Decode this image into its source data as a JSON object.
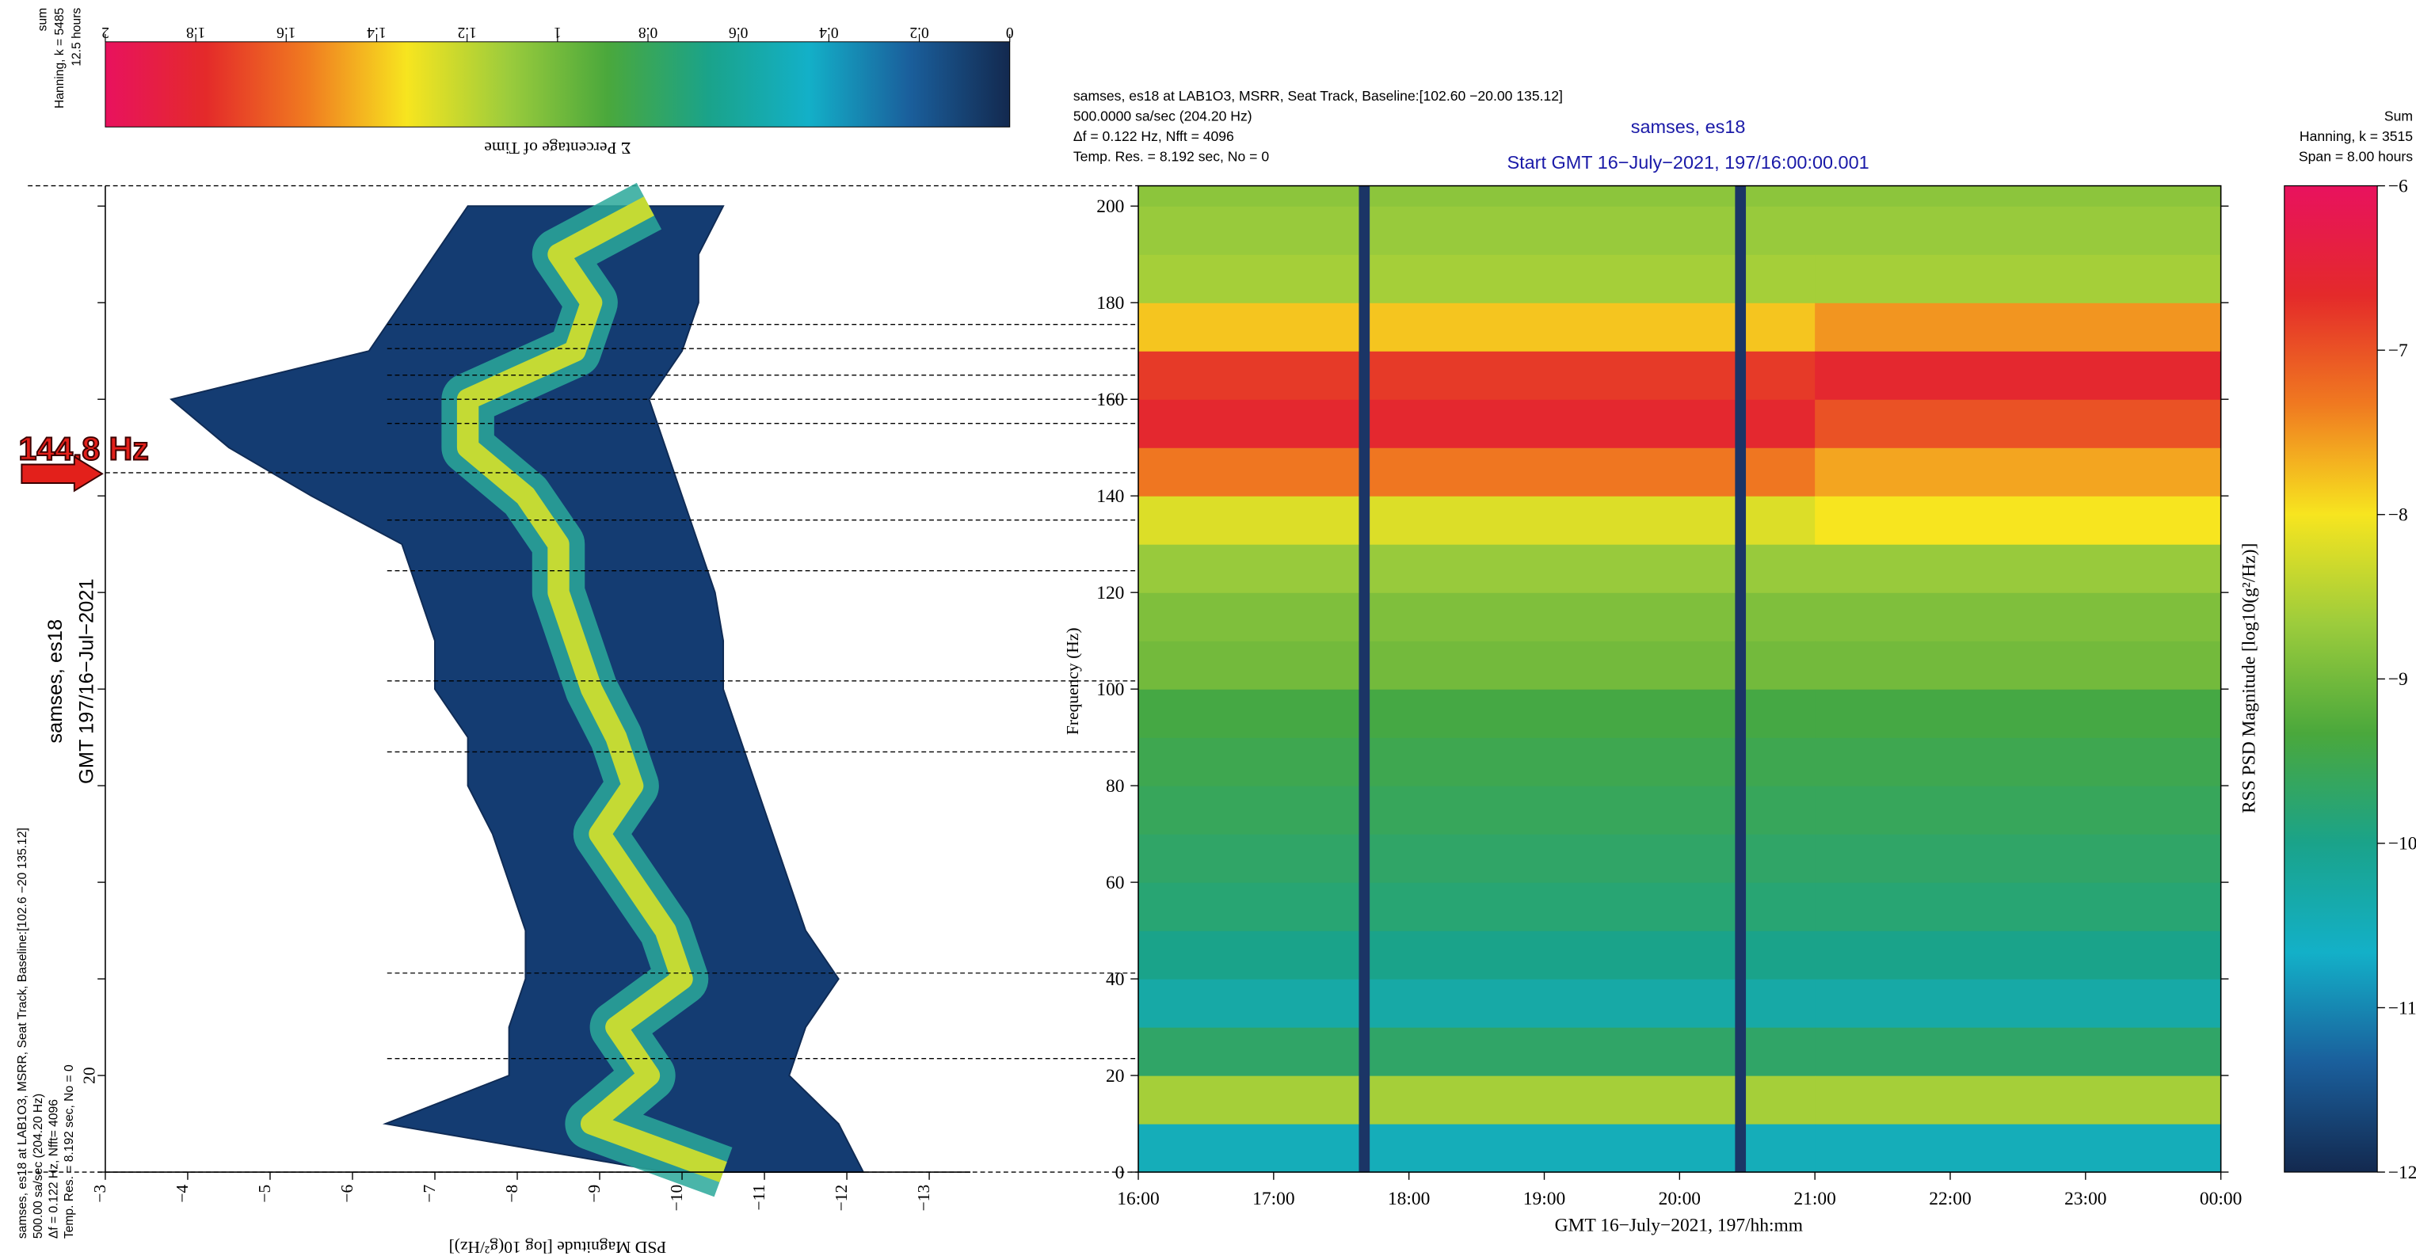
{
  "chart_data": [
    {
      "type": "psd_histogram",
      "side_title": "samses, es18",
      "side_subtitle": "GMT 197/16−Jul−2021",
      "info": [
        "samses, es18 at LAB1O3, MSRR, Seat Track, Baseline:[102.6 −20 135.12]",
        "500.00 sa/sec (204.20 Hz)",
        "Δf = 0.122 Hz, Nfft= 4096",
        "Temp. Res. = 8.192 sec, No = 0"
      ],
      "colorbar_info": [
        "sum",
        "Hanning, k = 5485",
        "12.5 hours"
      ],
      "xlabel": "PSD Magnitude [log 10(g²/Hz)]",
      "xlim": [
        -3,
        -13.5
      ],
      "xticks": [
        {
          "value": -3,
          "label": "−3"
        },
        {
          "value": -4,
          "label": "−4"
        },
        {
          "value": -5,
          "label": "−5"
        },
        {
          "value": -6,
          "label": "−6"
        },
        {
          "value": -7,
          "label": "−7"
        },
        {
          "value": -8,
          "label": "−8"
        },
        {
          "value": -9,
          "label": "−9"
        },
        {
          "value": -10,
          "label": "−10"
        },
        {
          "value": -11,
          "label": "−11"
        },
        {
          "value": -12,
          "label": "−12"
        },
        {
          "value": -13,
          "label": "−13"
        }
      ],
      "ylim": [
        0,
        204.2
      ],
      "yticks": [
        20
      ],
      "yticks_minor": [
        0,
        40,
        60,
        80,
        100,
        120,
        140,
        160,
        180,
        200
      ],
      "frequencies": [
        0,
        10,
        20,
        30,
        40,
        50,
        60,
        70,
        80,
        90,
        100,
        110,
        120,
        130,
        140,
        150,
        160,
        170,
        180,
        190,
        200
      ],
      "median": [
        -10.5,
        -8.9,
        -9.6,
        -9.2,
        -10.0,
        -9.8,
        -9.4,
        -9.0,
        -9.4,
        -9.2,
        -8.9,
        -8.7,
        -8.5,
        -8.5,
        -8.1,
        -7.4,
        -7.4,
        -8.7,
        -8.9,
        -8.5,
        -9.6
      ],
      "upper": [
        -9.8,
        -6.4,
        -7.9,
        -7.9,
        -8.1,
        -8.1,
        -7.9,
        -7.7,
        -7.4,
        -7.4,
        -7.0,
        -7.0,
        -6.8,
        -6.6,
        -5.5,
        -4.5,
        -3.8,
        -6.2,
        -6.6,
        -7.0,
        -7.4
      ],
      "lower": [
        -12.2,
        -11.9,
        -11.3,
        -11.5,
        -11.9,
        -11.5,
        -11.3,
        -11.1,
        -10.9,
        -10.7,
        -10.5,
        -10.5,
        -10.4,
        -10.2,
        -10.0,
        -9.8,
        -9.6,
        -10.0,
        -10.2,
        -10.2,
        -10.5
      ],
      "marked_frequencies": [
        175.5,
        170.5,
        165,
        160,
        155,
        144.8,
        135,
        124.5,
        101.7,
        87,
        41.2,
        23.5
      ],
      "annotation": {
        "text": "144.8 Hz",
        "frequency": 144.8
      },
      "colors": {
        "envelope": "#143c72",
        "median_outer": "#2aa89a",
        "median_inner": "#c4da34"
      },
      "colorbar": {
        "label": "Σ Percentage of Time",
        "xlim": [
          2,
          0
        ],
        "xticks": [
          2,
          1.8,
          1.6,
          1.4,
          1.2,
          1,
          0.8,
          0.6,
          0.4,
          0.2,
          0
        ],
        "colors": [
          "#e8125e",
          "#e42a2a",
          "#f07a20",
          "#f7e51f",
          "#9ccc3c",
          "#4aa83c",
          "#1aa38a",
          "#13b0c8",
          "#1a5f9c",
          "#13294f"
        ]
      }
    },
    {
      "type": "spectrogram",
      "header": [
        "samses, es18 at LAB1O3, MSRR, Seat Track, Baseline:[102.60 −20.00 135.12]",
        "500.0000 sa/sec (204.20 Hz)",
        "Δf = 0.122 Hz,  Nfft = 4096",
        "Temp. Res. = 8.192 sec, No = 0"
      ],
      "title": "samses, es18",
      "subtitle": "Start GMT 16−July−2021, 197/16:00:00.001",
      "info": [
        "Sum",
        "Hanning, k = 3515",
        "Span = 8.00 hours"
      ],
      "xlabel": "GMT 16−July−2021, 197/hh:mm",
      "ylabel": "Frequency (Hz)",
      "xlim": [
        16,
        24
      ],
      "xticks": [
        {
          "value": 16,
          "label": "16:00"
        },
        {
          "value": 17,
          "label": "17:00"
        },
        {
          "value": 18,
          "label": "18:00"
        },
        {
          "value": 19,
          "label": "19:00"
        },
        {
          "value": 20,
          "label": "20:00"
        },
        {
          "value": 21,
          "label": "21:00"
        },
        {
          "value": 22,
          "label": "22:00"
        },
        {
          "value": 23,
          "label": "23:00"
        },
        {
          "value": 24,
          "label": "00:00"
        }
      ],
      "ylim": [
        0,
        204.2
      ],
      "yticks": [
        0,
        20,
        40,
        60,
        80,
        100,
        120,
        140,
        160,
        180,
        200
      ],
      "time_edges": [
        16,
        21,
        24
      ],
      "freq_edges": [
        0,
        10,
        20,
        30,
        40,
        50,
        60,
        70,
        80,
        90,
        100,
        110,
        120,
        130,
        140,
        150,
        160,
        170,
        180,
        190,
        200,
        204.2
      ],
      "levels": [
        [
          -10.5,
          -8.6,
          -9.7,
          -10.3,
          -10.0,
          -9.8,
          -9.7,
          -9.6,
          -9.5,
          -9.4,
          -9.0,
          -8.9,
          -8.7,
          -8.2,
          -7.3,
          -6.6,
          -6.8,
          -7.8,
          -8.6,
          -8.7,
          -8.8
        ],
        [
          -10.5,
          -8.6,
          -9.7,
          -10.3,
          -10.0,
          -9.8,
          -9.7,
          -9.6,
          -9.5,
          -9.4,
          -9.0,
          -8.9,
          -8.7,
          -8.0,
          -7.6,
          -7.0,
          -6.6,
          -7.5,
          -8.6,
          -8.7,
          -8.8
        ]
      ],
      "dropouts": [
        17.67,
        20.45
      ],
      "dropout_color": "#1b3566",
      "colorbar": {
        "label": "RSS PSD Magnitude [log10(g²/Hz)]",
        "ylim": [
          -6,
          -12
        ],
        "yticks": [
          {
            "value": -6,
            "label": "−6"
          },
          {
            "value": -7,
            "label": "−7"
          },
          {
            "value": -8,
            "label": "−8"
          },
          {
            "value": -9,
            "label": "−9"
          },
          {
            "value": -10,
            "label": "−10"
          },
          {
            "value": -11,
            "label": "−11"
          },
          {
            "value": -12,
            "label": "−12"
          }
        ],
        "colors": [
          "#e8125e",
          "#e42a2a",
          "#f07a20",
          "#f7e51f",
          "#9ccc3c",
          "#4aa83c",
          "#1aa38a",
          "#13b0c8",
          "#1a5f9c",
          "#13294f"
        ]
      }
    }
  ]
}
